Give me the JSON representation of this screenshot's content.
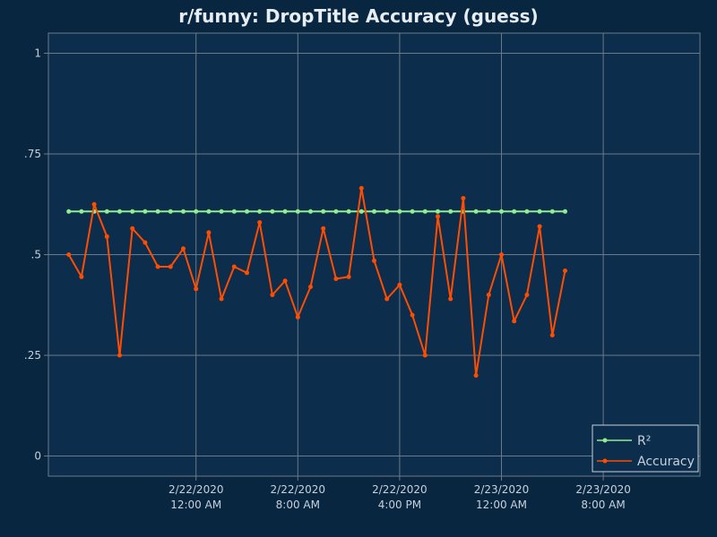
{
  "chart_data": {
    "type": "line",
    "title": "r/funny: DropTitle Accuracy (guess)",
    "xlabel": "",
    "ylabel": "",
    "ylim": [
      -0.05,
      1.05
    ],
    "xlim": [
      "2020-02-21T12:24:00",
      "2020-02-23T15:36:00"
    ],
    "yticks": [
      {
        "value": 1,
        "label": "1"
      },
      {
        "value": 0.75,
        "label": ".75"
      },
      {
        "value": 0.5,
        "label": ".5"
      },
      {
        "value": 0.25,
        "label": ".25"
      },
      {
        "value": 0,
        "label": "0"
      }
    ],
    "xticks": [
      {
        "value": "2020-02-22T00:00:00",
        "date": "2/22/2020",
        "time": "12:00 AM"
      },
      {
        "value": "2020-02-22T08:00:00",
        "date": "2/22/2020",
        "time": "8:00 AM"
      },
      {
        "value": "2020-02-22T16:00:00",
        "date": "2/22/2020",
        "time": "4:00 PM"
      },
      {
        "value": "2020-02-23T00:00:00",
        "date": "2/23/2020",
        "time": "12:00 AM"
      },
      {
        "value": "2020-02-23T08:00:00",
        "date": "2/23/2020",
        "time": "8:00 AM"
      }
    ],
    "x": [
      "2020-02-21T14:00:00",
      "2020-02-21T15:00:00",
      "2020-02-21T16:00:00",
      "2020-02-21T17:00:00",
      "2020-02-21T18:00:00",
      "2020-02-21T19:00:00",
      "2020-02-21T20:00:00",
      "2020-02-21T21:00:00",
      "2020-02-21T22:00:00",
      "2020-02-21T23:00:00",
      "2020-02-22T00:00:00",
      "2020-02-22T01:00:00",
      "2020-02-22T02:00:00",
      "2020-02-22T03:00:00",
      "2020-02-22T04:00:00",
      "2020-02-22T05:00:00",
      "2020-02-22T06:00:00",
      "2020-02-22T07:00:00",
      "2020-02-22T08:00:00",
      "2020-02-22T09:00:00",
      "2020-02-22T10:00:00",
      "2020-02-22T11:00:00",
      "2020-02-22T12:00:00",
      "2020-02-22T13:00:00",
      "2020-02-22T14:00:00",
      "2020-02-22T15:00:00",
      "2020-02-22T16:00:00",
      "2020-02-22T17:00:00",
      "2020-02-22T18:00:00",
      "2020-02-22T19:00:00",
      "2020-02-22T20:00:00",
      "2020-02-22T21:00:00",
      "2020-02-22T22:00:00",
      "2020-02-22T23:00:00",
      "2020-02-23T00:00:00",
      "2020-02-23T01:00:00",
      "2020-02-23T02:00:00",
      "2020-02-23T03:00:00",
      "2020-02-23T04:00:00",
      "2020-02-23T05:00:00"
    ],
    "series": [
      {
        "name": "R²",
        "color": "#90ee90",
        "values": [
          0.607,
          0.607,
          0.607,
          0.607,
          0.607,
          0.607,
          0.607,
          0.607,
          0.607,
          0.607,
          0.607,
          0.607,
          0.607,
          0.607,
          0.607,
          0.607,
          0.607,
          0.607,
          0.607,
          0.607,
          0.607,
          0.607,
          0.607,
          0.607,
          0.607,
          0.607,
          0.607,
          0.607,
          0.607,
          0.607,
          0.607,
          0.607,
          0.607,
          0.607,
          0.607,
          0.607,
          0.607,
          0.607,
          0.607,
          0.607
        ]
      },
      {
        "name": "Accuracy",
        "color": "#ff4d00",
        "values": [
          0.5,
          0.445,
          0.625,
          0.545,
          0.25,
          0.565,
          0.53,
          0.47,
          0.47,
          0.515,
          0.415,
          0.555,
          0.39,
          0.47,
          0.455,
          0.58,
          0.4,
          0.435,
          0.345,
          0.42,
          0.565,
          0.44,
          0.445,
          0.665,
          0.485,
          0.39,
          0.425,
          0.35,
          0.25,
          0.595,
          0.39,
          0.64,
          0.2,
          0.4,
          0.5,
          0.335,
          0.4,
          0.57,
          0.3,
          0.46
        ]
      }
    ],
    "grid": true,
    "legend": "bottom-right"
  },
  "colors": {
    "background": "#082640",
    "plot_background": "#0c2d4c",
    "grid": "#6b7a89",
    "text": "#c7d1db",
    "legend_border": "#c7d1db"
  }
}
